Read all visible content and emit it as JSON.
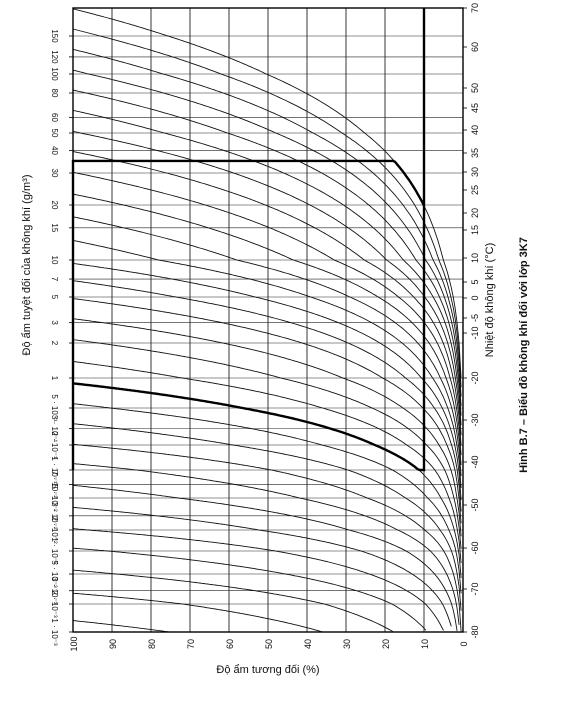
{
  "chart_data": {
    "type": "line",
    "title": "Hình B.7 – Biểu đồ không khí đối với lớp 3K7",
    "xlabel": "Độ ẩm tương đối (%)",
    "ylabel_left": "Độ ẩm tuyệt đối của không khí (g/m³)",
    "ylabel_right": "Nhiệt độ không khí (°C)",
    "x_ticks": [
      "100",
      "90",
      "80",
      "70",
      "60",
      "50",
      "40",
      "30",
      "20",
      "10",
      "0"
    ],
    "xlim": [
      100,
      0
    ],
    "temperature_ticks": [
      "70",
      "60",
      "50",
      "45",
      "40",
      "35",
      "30",
      "25",
      "20",
      "15",
      "10",
      "5",
      "0",
      "-5",
      "-10",
      "-20",
      "-30",
      "-40",
      "-50",
      "-60",
      "-70",
      "-80"
    ],
    "temperature_range": [
      -80,
      70
    ],
    "humidity_ticks": [
      "150",
      "120",
      "100",
      "80",
      "60",
      "50",
      "40",
      "30",
      "20",
      "15",
      "10",
      "7",
      "5",
      "3",
      "2",
      "1",
      "5 · 10⁻¹",
      "3 · 10⁻¹",
      "2 · 10⁻¹",
      "1 · 10⁻¹",
      "7 · 10⁻²",
      "5 · 10⁻²",
      "3 · 10⁻²",
      "2 · 10⁻²",
      "1 · 10⁻²",
      "5 · 10⁻³",
      "3 · 10⁻³",
      "2 · 10⁻³",
      "1 · 10⁻³"
    ],
    "humidity_scale": "log",
    "humidity_range": [
      0.001,
      200
    ],
    "grid": true,
    "series_description": "constant-temperature curves, one per °C mark",
    "climate_class_envelope": {
      "rh_min": 10,
      "rh_max": 100,
      "abs_humidity_min": 0.1,
      "abs_humidity_max": 35,
      "upper_temperature": 70,
      "lower_temperature": -20
    }
  }
}
